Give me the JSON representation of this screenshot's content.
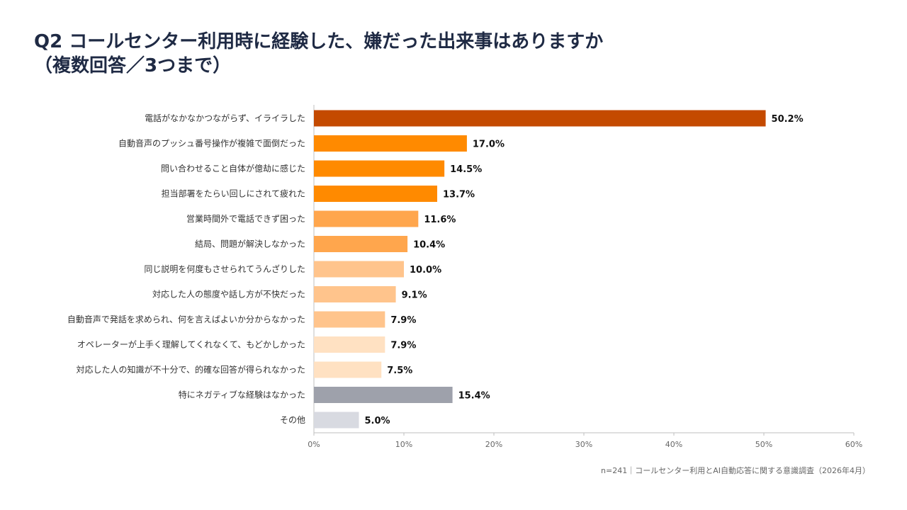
{
  "title": {
    "line1": "Q2 コールセンター利用時に経験した、嫌だった出来事はありますか",
    "line2": "（複数回答／3つまで）"
  },
  "footnote": "n=241｜コールセンター利用とAI自動応答に関する意識調査（2026年4月）",
  "chart_data": {
    "type": "bar",
    "orientation": "horizontal",
    "categories": [
      "電話がなかなかつながらず、イライラした",
      "自動音声のプッシュ番号操作が複雑で面倒だった",
      "問い合わせること自体が億劫に感じた",
      "担当部署をたらい回しにされて疲れた",
      "営業時間外で電話できず困った",
      "結局、問題が解決しなかった",
      "同じ説明を何度もさせられてうんざりした",
      "対応した人の態度や話し方が不快だった",
      "自動音声で発話を求められ、何を言えばよいか分からなかった",
      "オペレーターが上手く理解してくれなくて、もどかしかった",
      "対応した人の知識が不十分で、的確な回答が得られなかった",
      "特にネガティブな経験はなかった",
      "その他"
    ],
    "values": [
      50.2,
      17.0,
      14.5,
      13.7,
      11.6,
      10.4,
      10.0,
      9.1,
      7.9,
      7.9,
      7.5,
      15.4,
      5.0
    ],
    "value_labels": [
      "50.2%",
      "17.0%",
      "14.5%",
      "13.7%",
      "11.6%",
      "10.4%",
      "10.0%",
      "9.1%",
      "7.9%",
      "7.9%",
      "7.5%",
      "15.4%",
      "5.0%"
    ],
    "colors": [
      "#c44a00",
      "#ff8a00",
      "#ff8a00",
      "#ff8a00",
      "#ffa64d",
      "#ffa64d",
      "#ffc48c",
      "#ffc48c",
      "#ffc48c",
      "#ffe1c2",
      "#ffe1c2",
      "#9ea1ab",
      "#d8dae1"
    ],
    "xlim": [
      0,
      60
    ],
    "xticks": [
      0,
      10,
      20,
      30,
      40,
      50,
      60
    ],
    "xtick_labels": [
      "0%",
      "10%",
      "20%",
      "30%",
      "40%",
      "50%",
      "60%"
    ],
    "grid": false,
    "legend": "none"
  }
}
